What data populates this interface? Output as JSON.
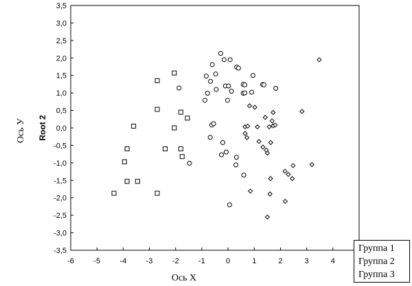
{
  "chart_data": {
    "type": "scatter",
    "xlabel": "Ось X",
    "ylabel": "Root 2",
    "ylabel_outer": "Ось У",
    "xlim": [
      -6,
      5
    ],
    "ylim": [
      -3.5,
      3.5
    ],
    "grid": false,
    "legend": {
      "placement": "bottom-right"
    },
    "x_ticks": [
      {
        "value": -6,
        "label": "-6"
      },
      {
        "value": -5,
        "label": "-5"
      },
      {
        "value": -4,
        "label": "-4"
      },
      {
        "value": -3,
        "label": "-3"
      },
      {
        "value": -2,
        "label": "-2"
      },
      {
        "value": -1,
        "label": "-1"
      },
      {
        "value": 0,
        "label": "0"
      },
      {
        "value": 1,
        "label": "1"
      },
      {
        "value": 2,
        "label": "2"
      },
      {
        "value": 3,
        "label": "3"
      },
      {
        "value": 4,
        "label": "4"
      }
    ],
    "y_ticks": [
      {
        "value": 3.5,
        "label": "3,5"
      },
      {
        "value": 3.0,
        "label": "3,0"
      },
      {
        "value": 2.5,
        "label": "2,5"
      },
      {
        "value": 2.0,
        "label": "2,0"
      },
      {
        "value": 1.5,
        "label": "1,5"
      },
      {
        "value": 1.0,
        "label": "1,0"
      },
      {
        "value": 0.5,
        "label": "0,5"
      },
      {
        "value": 0.0,
        "label": "0,0"
      },
      {
        "value": -0.5,
        "label": "-0,5"
      },
      {
        "value": -1.0,
        "label": "-1,0"
      },
      {
        "value": -1.5,
        "label": "-1,5"
      },
      {
        "value": -2.0,
        "label": "-2,0"
      },
      {
        "value": -2.5,
        "label": "-2,5"
      },
      {
        "value": -3.0,
        "label": "-3,0"
      },
      {
        "value": -3.5,
        "label": "-3,5"
      }
    ],
    "series": [
      {
        "name": "Группа 1",
        "marker": "square",
        "color": "#000000",
        "points": [
          [
            -2.05,
            1.57
          ],
          [
            -2.7,
            1.35
          ],
          [
            -2.7,
            0.53
          ],
          [
            -1.8,
            0.45
          ],
          [
            -1.55,
            0.28
          ],
          [
            -3.6,
            0.05
          ],
          [
            -2.05,
            0.0
          ],
          [
            -3.85,
            -0.6
          ],
          [
            -2.4,
            -0.6
          ],
          [
            -1.8,
            -0.6
          ],
          [
            -1.75,
            -0.82
          ],
          [
            -3.95,
            -0.97
          ],
          [
            -3.85,
            -1.53
          ],
          [
            -3.45,
            -1.53
          ],
          [
            -4.35,
            -1.87
          ],
          [
            -2.7,
            -1.87
          ]
        ]
      },
      {
        "name": "Группа 2",
        "marker": "circle",
        "color": "#000000",
        "points": [
          [
            -0.28,
            2.13
          ],
          [
            -0.15,
            1.95
          ],
          [
            0.08,
            1.95
          ],
          [
            -0.6,
            1.81
          ],
          [
            0.33,
            1.74
          ],
          [
            0.4,
            1.71
          ],
          [
            -0.83,
            1.48
          ],
          [
            -0.47,
            1.54
          ],
          [
            0.95,
            1.5
          ],
          [
            -0.67,
            1.33
          ],
          [
            0.58,
            1.24
          ],
          [
            0.64,
            1.23
          ],
          [
            1.32,
            1.24
          ],
          [
            1.37,
            1.23
          ],
          [
            -1.87,
            1.14
          ],
          [
            -0.78,
            0.99
          ],
          [
            -0.45,
            1.1
          ],
          [
            -0.1,
            1.2
          ],
          [
            0.02,
            1.2
          ],
          [
            0.13,
            1.05
          ],
          [
            0.58,
            0.99
          ],
          [
            0.64,
            1.0
          ],
          [
            0.9,
            1.02
          ],
          [
            1.82,
            1.13
          ],
          [
            -0.88,
            0.79
          ],
          [
            -0.02,
            0.79
          ],
          [
            -0.62,
            0.08
          ],
          [
            -0.55,
            0.12
          ],
          [
            -0.68,
            -0.27
          ],
          [
            -0.2,
            -0.42
          ],
          [
            -0.07,
            -0.69
          ],
          [
            -0.25,
            -0.77
          ],
          [
            0.32,
            -0.84
          ],
          [
            0.3,
            -1.06
          ],
          [
            -1.47,
            -1.01
          ],
          [
            0.6,
            -1.35
          ],
          [
            0.06,
            -2.2
          ]
        ]
      },
      {
        "name": "Группа 3",
        "marker": "diamond",
        "color": "#000000",
        "points": [
          [
            3.48,
            1.95
          ],
          [
            0.82,
            0.63
          ],
          [
            1.02,
            0.59
          ],
          [
            2.82,
            0.47
          ],
          [
            1.72,
            0.44
          ],
          [
            1.42,
            0.3
          ],
          [
            1.68,
            0.2
          ],
          [
            0.65,
            0.03
          ],
          [
            0.75,
            0.05
          ],
          [
            1.12,
            0.03
          ],
          [
            1.57,
            0.03
          ],
          [
            1.72,
            0.06
          ],
          [
            1.8,
            0.08
          ],
          [
            0.65,
            -0.16
          ],
          [
            0.72,
            -0.28
          ],
          [
            1.18,
            -0.39
          ],
          [
            1.63,
            -0.42
          ],
          [
            1.33,
            -0.55
          ],
          [
            1.46,
            -0.64
          ],
          [
            1.5,
            -0.72
          ],
          [
            1.62,
            -1.45
          ],
          [
            2.17,
            -1.24
          ],
          [
            2.3,
            -1.33
          ],
          [
            2.45,
            -1.45
          ],
          [
            2.48,
            -1.08
          ],
          [
            3.2,
            -1.05
          ],
          [
            0.85,
            -1.81
          ],
          [
            1.6,
            -1.89
          ],
          [
            2.18,
            -2.1
          ],
          [
            1.5,
            -2.55
          ]
        ]
      }
    ]
  }
}
